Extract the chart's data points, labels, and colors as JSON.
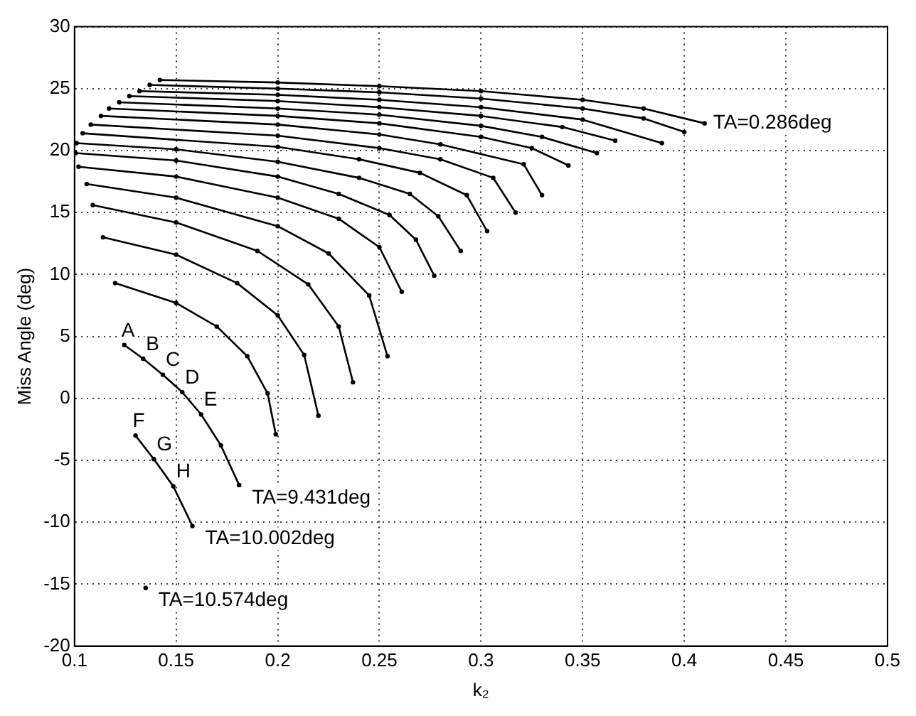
{
  "chart_data": {
    "type": "line",
    "xlabel": "k₂",
    "ylabel": "Miss Angle (deg)",
    "xlim": [
      0.1,
      0.5
    ],
    "xticks": [
      0.1,
      0.15,
      0.2,
      0.25,
      0.3,
      0.35,
      0.4,
      0.45,
      0.5
    ],
    "ylim": [
      -20,
      30
    ],
    "yticks": [
      -20,
      -15,
      -10,
      -5,
      0,
      5,
      10,
      15,
      20,
      25,
      30
    ],
    "grid": true,
    "legend": false,
    "marker": "circle",
    "line_style": "solid",
    "series": [
      {
        "color": "#000000",
        "x": [
          0.142,
          0.2,
          0.25,
          0.3,
          0.35,
          0.38,
          0.41
        ],
        "values": [
          25.7,
          25.5,
          25.2,
          24.8,
          24.1,
          23.4,
          22.2
        ]
      },
      {
        "color": "#000000",
        "x": [
          0.137,
          0.2,
          0.25,
          0.3,
          0.35,
          0.38,
          0.4
        ],
        "values": [
          25.3,
          25.0,
          24.7,
          24.2,
          23.4,
          22.6,
          21.5
        ]
      },
      {
        "color": "#000000",
        "x": [
          0.132,
          0.2,
          0.25,
          0.3,
          0.35,
          0.389
        ],
        "values": [
          24.8,
          24.5,
          24.1,
          23.5,
          22.5,
          20.6
        ]
      },
      {
        "color": "#000000",
        "x": [
          0.127,
          0.2,
          0.25,
          0.3,
          0.34,
          0.366
        ],
        "values": [
          24.4,
          24.0,
          23.5,
          22.8,
          21.9,
          20.8
        ]
      },
      {
        "color": "#000000",
        "x": [
          0.122,
          0.2,
          0.25,
          0.3,
          0.33,
          0.357
        ],
        "values": [
          23.9,
          23.4,
          22.9,
          22.0,
          21.1,
          19.8
        ]
      },
      {
        "color": "#000000",
        "x": [
          0.117,
          0.2,
          0.25,
          0.3,
          0.325,
          0.343
        ],
        "values": [
          23.4,
          22.8,
          22.2,
          21.1,
          20.2,
          18.8
        ]
      },
      {
        "color": "#000000",
        "x": [
          0.113,
          0.2,
          0.25,
          0.28,
          0.321,
          0.33
        ],
        "values": [
          22.8,
          22.1,
          21.3,
          20.5,
          18.9,
          16.4
        ]
      },
      {
        "color": "#000000",
        "x": [
          0.108,
          0.2,
          0.25,
          0.28,
          0.306,
          0.317
        ],
        "values": [
          22.1,
          21.2,
          20.2,
          19.3,
          17.8,
          15.0
        ]
      },
      {
        "color": "#000000",
        "x": [
          0.104,
          0.2,
          0.24,
          0.27,
          0.293,
          0.303
        ],
        "values": [
          21.4,
          20.3,
          19.3,
          18.2,
          16.4,
          13.5
        ]
      },
      {
        "color": "#000000",
        "x": [
          0.101,
          0.15,
          0.2,
          0.24,
          0.265,
          0.279,
          0.29
        ],
        "values": [
          20.6,
          20.1,
          19.1,
          17.8,
          16.5,
          14.7,
          11.9
        ]
      },
      {
        "color": "#000000",
        "x": [
          0.1006,
          0.15,
          0.2,
          0.23,
          0.255,
          0.268,
          0.277
        ],
        "values": [
          19.8,
          19.2,
          17.9,
          16.5,
          14.8,
          12.8,
          9.9
        ]
      },
      {
        "color": "#000000",
        "x": [
          0.102,
          0.15,
          0.2,
          0.23,
          0.25,
          0.261
        ],
        "values": [
          18.7,
          17.9,
          16.2,
          14.5,
          12.2,
          8.6
        ]
      },
      {
        "color": "#000000",
        "x": [
          0.106,
          0.15,
          0.2,
          0.225,
          0.245,
          0.254
        ],
        "values": [
          17.3,
          16.2,
          13.9,
          11.7,
          8.3,
          3.4
        ]
      },
      {
        "color": "#000000",
        "x": [
          0.109,
          0.15,
          0.19,
          0.215,
          0.23,
          0.237
        ],
        "values": [
          15.6,
          14.2,
          11.9,
          9.2,
          5.8,
          1.3
        ]
      },
      {
        "color": "#000000",
        "x": [
          0.114,
          0.15,
          0.18,
          0.2,
          0.213,
          0.22
        ],
        "values": [
          13.0,
          11.6,
          9.3,
          6.7,
          3.5,
          -1.4
        ]
      },
      {
        "color": "#000000",
        "x": [
          0.12,
          0.15,
          0.17,
          0.185,
          0.195,
          0.199
        ],
        "values": [
          9.3,
          7.7,
          5.8,
          3.4,
          0.4,
          -2.9
        ]
      },
      {
        "color": "#000000",
        "x": [
          0.1245,
          0.1338,
          0.1435,
          0.153,
          0.1623,
          0.172,
          0.181
        ],
        "values": [
          4.3,
          3.2,
          1.9,
          0.5,
          -1.3,
          -3.8,
          -7.0
        ]
      },
      {
        "color": "#000000",
        "x": [
          0.13,
          0.139,
          0.1486,
          0.158
        ],
        "values": [
          -3.0,
          -4.9,
          -7.1,
          -10.3
        ]
      },
      {
        "color": "#000000",
        "x": [
          0.135
        ],
        "values": [
          -15.3
        ]
      }
    ],
    "annotations": [
      {
        "text": "TA=0.286deg",
        "x": 0.41,
        "y": 22.2
      },
      {
        "text": "TA=9.431deg",
        "x": 0.181,
        "y": -7.0
      },
      {
        "text": "TA=10.002deg",
        "x": 0.158,
        "y": -10.3
      },
      {
        "text": "TA=10.574deg",
        "x": 0.135,
        "y": -15.3
      },
      {
        "text": "A",
        "x": 0.1245,
        "y": 4.3
      },
      {
        "text": "B",
        "x": 0.1338,
        "y": 3.2
      },
      {
        "text": "C",
        "x": 0.1435,
        "y": 1.9
      },
      {
        "text": "D",
        "x": 0.153,
        "y": 0.5
      },
      {
        "text": "E",
        "x": 0.1623,
        "y": -1.3
      },
      {
        "text": "F",
        "x": 0.13,
        "y": -3.0
      },
      {
        "text": "G",
        "x": 0.139,
        "y": -4.9
      },
      {
        "text": "H",
        "x": 0.1486,
        "y": -7.1
      }
    ]
  }
}
